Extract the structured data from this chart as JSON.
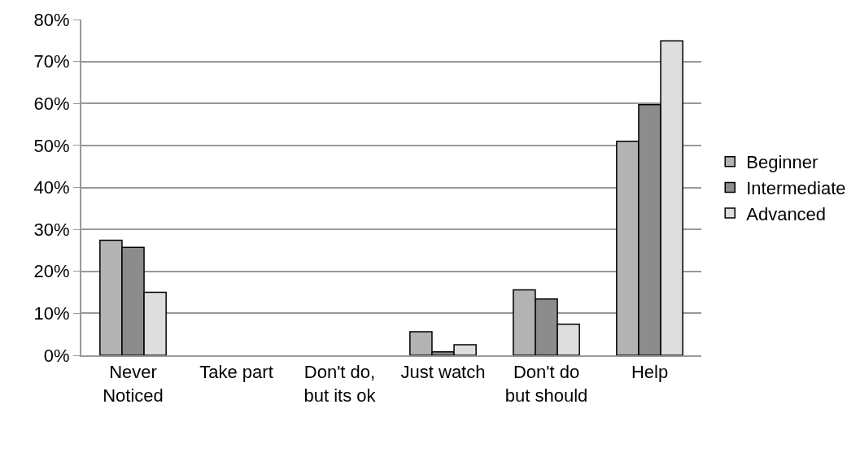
{
  "chart_data": {
    "type": "bar",
    "categories": [
      "Never Noticed",
      "Take part",
      "Don't do, but its ok",
      "Just watch",
      "Don't do but should",
      "Help"
    ],
    "series": [
      {
        "name": "Beginner",
        "color": "#b3b3b3",
        "values": [
          27.4,
          null,
          null,
          5.6,
          15.6,
          51.0
        ]
      },
      {
        "name": "Intermediate",
        "color": "#8c8c8c",
        "values": [
          25.7,
          null,
          null,
          0.8,
          13.4,
          59.7
        ]
      },
      {
        "name": "Advanced",
        "color": "#dedede",
        "values": [
          15.0,
          null,
          null,
          2.5,
          7.4,
          74.9
        ]
      }
    ],
    "ylim": [
      0,
      80
    ],
    "yticks": [
      {
        "value": 0,
        "label": "0%"
      },
      {
        "value": 10,
        "label": "10%"
      },
      {
        "value": 20,
        "label": "20%"
      },
      {
        "value": 30,
        "label": "30%"
      },
      {
        "value": 40,
        "label": "40%"
      },
      {
        "value": 50,
        "label": "50%"
      },
      {
        "value": 60,
        "label": "60%"
      },
      {
        "value": 70,
        "label": "70%"
      },
      {
        "value": 80,
        "label": "80%"
      }
    ],
    "grid": "y",
    "legend": "right"
  }
}
